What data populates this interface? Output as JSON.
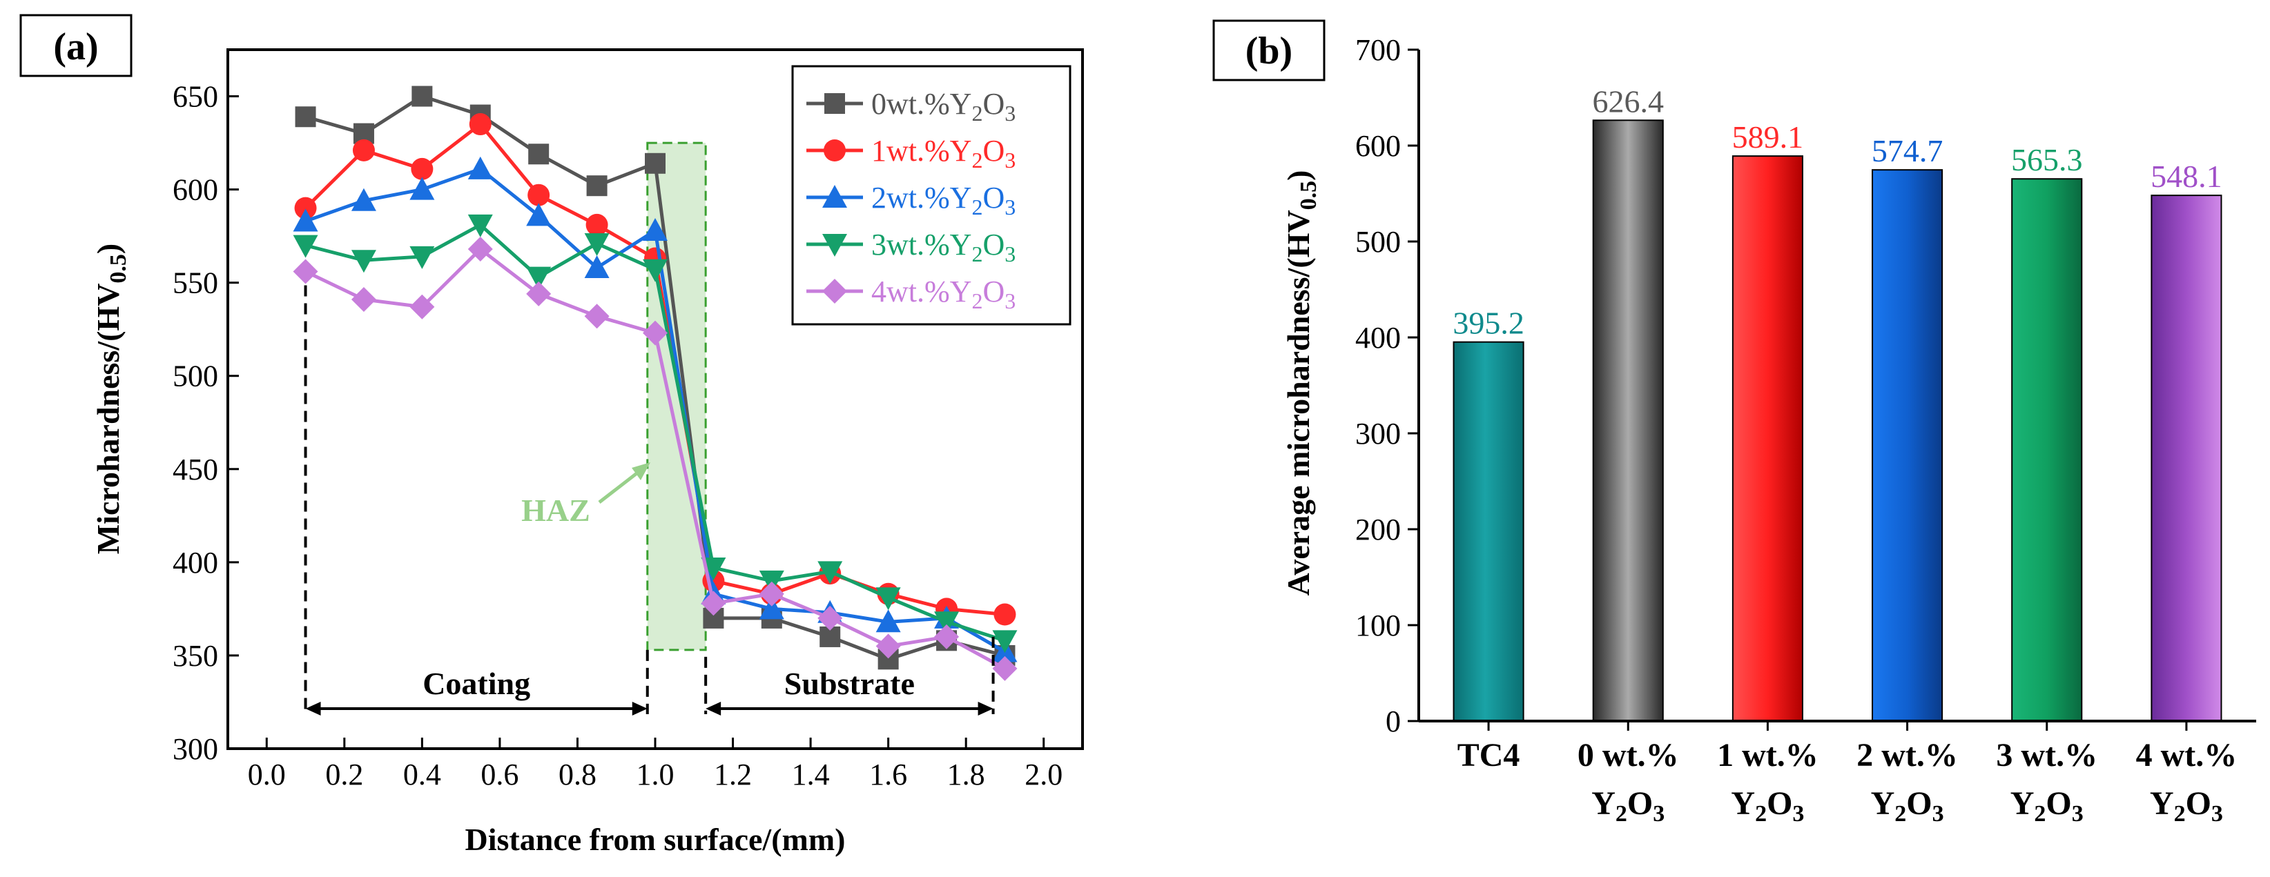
{
  "chart_data": [
    {
      "panel": "(a)",
      "type": "line",
      "xlabel": "Distance from surface/(mm)",
      "ylabel": "Microhardness/(HV",
      "ylabel_sub": "0.5",
      "ylabel_end": ")",
      "xlim": [
        -0.1,
        2.1
      ],
      "ylim": [
        300,
        675
      ],
      "xticks": [
        "0.0",
        "0.2",
        "0.4",
        "0.6",
        "0.8",
        "1.0",
        "1.2",
        "1.4",
        "1.6",
        "1.8",
        "2.0"
      ],
      "yticks": [
        "300",
        "350",
        "400",
        "450",
        "500",
        "550",
        "600",
        "650"
      ],
      "x": [
        0.1,
        0.25,
        0.4,
        0.55,
        0.7,
        0.85,
        1.0,
        1.15,
        1.3,
        1.45,
        1.6,
        1.75,
        1.9
      ],
      "series": [
        {
          "name": "0wt.%Y2O3",
          "legend_prefix": "0wt.%Y",
          "color": "#555555",
          "marker": "square",
          "values": [
            639,
            630,
            650,
            640,
            619,
            602,
            614,
            370,
            370,
            360,
            348,
            358,
            350
          ]
        },
        {
          "name": "1wt.%Y2O3",
          "legend_prefix": "1wt.%Y",
          "color": "#ff2a2a",
          "marker": "circle",
          "values": [
            590,
            621,
            611,
            635,
            597,
            581,
            563,
            390,
            383,
            394,
            383,
            375,
            372
          ]
        },
        {
          "name": "2wt.%Y2O3",
          "legend_prefix": "2wt.%Y",
          "color": "#1a6fe0",
          "marker": "triangle-up",
          "values": [
            583,
            594,
            600,
            611,
            586,
            558,
            578,
            383,
            375,
            373,
            368,
            370,
            352
          ]
        },
        {
          "name": "3wt.%Y2O3",
          "legend_prefix": "3wt.%Y",
          "color": "#16a06a",
          "marker": "triangle-down",
          "values": [
            570,
            562,
            564,
            581,
            553,
            571,
            557,
            397,
            390,
            395,
            381,
            368,
            358
          ]
        },
        {
          "name": "4wt.%Y2O3",
          "legend_prefix": "4wt.%Y",
          "color": "#c77ddb",
          "marker": "diamond",
          "values": [
            556,
            541,
            537,
            568,
            544,
            532,
            523,
            378,
            383,
            370,
            355,
            360,
            343
          ]
        }
      ],
      "regions": {
        "coating_label": "Coating",
        "coating_range": [
          0.1,
          0.98
        ],
        "substrate_label": "Substrate",
        "substrate_range": [
          1.13,
          1.87
        ],
        "haz_label": "HAZ",
        "haz_range": [
          0.98,
          1.13
        ],
        "haz_y_range": [
          353,
          625
        ]
      },
      "legend_suffix_sub": "2",
      "legend_suffix_o": "O",
      "legend_suffix_sub2": "3"
    },
    {
      "panel": "(b)",
      "type": "bar",
      "ylabel": "Average microhardness/(HV",
      "ylabel_sub": "0.5",
      "ylabel_end": ")",
      "ylim": [
        0,
        700
      ],
      "yticks": [
        "0",
        "100",
        "200",
        "300",
        "400",
        "500",
        "600",
        "700"
      ],
      "categories": [
        {
          "line1": "TC4",
          "line2": ""
        },
        {
          "line1": "0 wt.%",
          "line2": "Y"
        },
        {
          "line1": "1 wt.%",
          "line2": "Y"
        },
        {
          "line1": "2 wt.%",
          "line2": "Y"
        },
        {
          "line1": "3 wt.%",
          "line2": "Y"
        },
        {
          "line1": "4 wt.%",
          "line2": "Y"
        }
      ],
      "values": [
        395.2,
        626.4,
        589.1,
        574.7,
        565.3,
        548.1
      ],
      "value_labels": [
        "395.2",
        "626.4",
        "589.1",
        "574.7",
        "565.3",
        "548.1"
      ],
      "colors": [
        "#0e8a8c",
        "#5a5a5a",
        "#ff2a2a",
        "#1060d0",
        "#16a06a",
        "#a050c8"
      ],
      "label_colors": [
        "#0e8a8c",
        "#5a5a5a",
        "#ff2a2a",
        "#1060d0",
        "#16a06a",
        "#a050c8"
      ]
    }
  ]
}
